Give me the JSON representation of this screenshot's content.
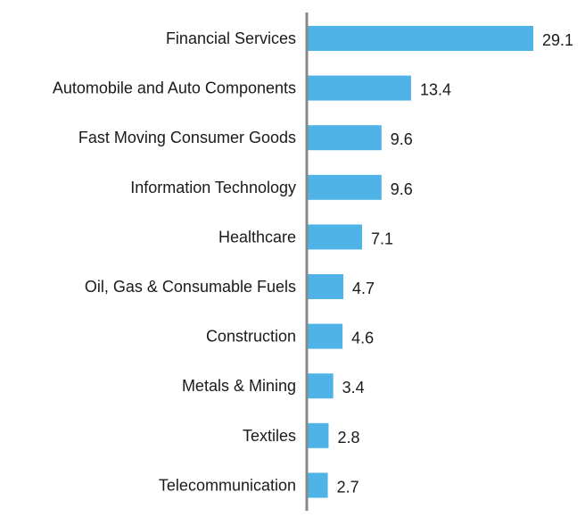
{
  "chart_data": {
    "type": "bar",
    "orientation": "horizontal",
    "categories": [
      "Financial Services",
      "Automobile and Auto Components",
      "Fast Moving Consumer Goods",
      "Information Technology",
      "Healthcare",
      "Oil, Gas & Consumable Fuels",
      "Construction",
      "Metals & Mining",
      "Textiles",
      "Telecommunication"
    ],
    "values": [
      29.1,
      13.4,
      9.6,
      9.6,
      7.1,
      4.7,
      4.6,
      3.4,
      2.8,
      2.7
    ],
    "value_labels": [
      "29.1",
      "13.4",
      "9.6",
      "9.6",
      "7.1",
      "4.7",
      "4.6",
      "3.4",
      "2.8",
      "2.7"
    ],
    "bar_color": "#4FB3E8",
    "axis_color": "#888888",
    "grid": false,
    "legend": "none"
  }
}
